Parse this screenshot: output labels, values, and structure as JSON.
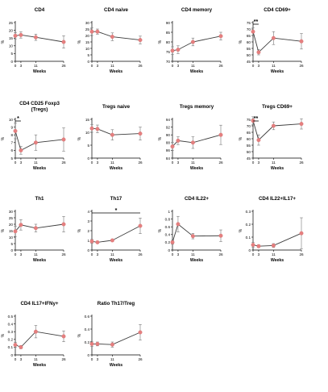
{
  "figure": {
    "xlabel": "Weeks",
    "ylabel": "%",
    "point_color": "#e57f7f",
    "line_color": "#3c3c3c"
  },
  "chart_data": [
    {
      "type": "line",
      "title": "CD4",
      "ylim": [
        0,
        25
      ],
      "yticks": [
        0,
        5,
        10,
        15,
        20,
        25
      ],
      "xticks": [
        0,
        3,
        11,
        26
      ],
      "x": [
        0,
        3,
        11,
        26
      ],
      "y": [
        16.5,
        17,
        15.5,
        12.5
      ],
      "err": [
        2,
        2,
        2,
        4
      ]
    },
    {
      "type": "line",
      "title": "CD4 naive",
      "ylim": [
        0,
        30
      ],
      "yticks": [
        0,
        5,
        10,
        15,
        20,
        25,
        30
      ],
      "xticks": [
        0,
        3,
        11,
        26
      ],
      "x": [
        0,
        3,
        11,
        26
      ],
      "y": [
        23,
        23,
        19,
        16.5
      ],
      "err": [
        3,
        2,
        3,
        3
      ]
    },
    {
      "type": "line",
      "title": "CD4 memory",
      "ylim": [
        70,
        90
      ],
      "yticks": [
        70,
        75,
        80,
        85,
        90
      ],
      "xticks": [
        0,
        3,
        11,
        26
      ],
      "x": [
        0,
        3,
        11,
        26
      ],
      "y": [
        75.5,
        76,
        80,
        83
      ],
      "err": [
        2,
        2,
        2,
        2
      ]
    },
    {
      "type": "line",
      "title": "CD4 CD69+",
      "ylim": [
        45,
        75
      ],
      "yticks": [
        45,
        50,
        55,
        60,
        65,
        70,
        75
      ],
      "xticks": [
        0,
        3,
        11,
        26
      ],
      "x": [
        0,
        3,
        11,
        26
      ],
      "y": [
        68,
        52,
        63,
        60.5
      ],
      "err": [
        3,
        2,
        5,
        6
      ],
      "annotations": [
        {
          "text": "**",
          "x1": 0,
          "x2": 3
        }
      ]
    },
    {
      "type": "line",
      "title": "CD4 CD25 Foxp3",
      "subtitle": "(Tregs)",
      "ylim": [
        5,
        10
      ],
      "yticks": [
        5,
        6,
        7,
        8,
        9,
        10
      ],
      "xticks": [
        0,
        3,
        11,
        26
      ],
      "x": [
        0,
        3,
        11,
        26
      ],
      "y": [
        8.5,
        6,
        7,
        7.4
      ],
      "err": [
        1,
        0.5,
        1,
        1.5
      ],
      "annotations": [
        {
          "text": "*",
          "x1": 0,
          "x2": 3
        }
      ]
    },
    {
      "type": "line",
      "title": "Tregs naive",
      "ylim": [
        0,
        15
      ],
      "yticks": [
        0,
        5,
        10,
        15
      ],
      "xticks": [
        0,
        3,
        11,
        26
      ],
      "x": [
        0,
        3,
        11,
        26
      ],
      "y": [
        11.5,
        11.3,
        9,
        9.5
      ],
      "err": [
        1.5,
        1.5,
        2,
        2.5
      ]
    },
    {
      "type": "line",
      "title": "Tregs memory",
      "ylim": [
        84,
        94
      ],
      "yticks": [
        84,
        86,
        88,
        90,
        92,
        94
      ],
      "xticks": [
        0,
        3,
        11,
        26
      ],
      "x": [
        0,
        3,
        11,
        26
      ],
      "y": [
        87,
        88.5,
        88,
        90
      ],
      "err": [
        1,
        1,
        1.5,
        2.5
      ]
    },
    {
      "type": "line",
      "title": "Tregs CD69+",
      "ylim": [
        45,
        75
      ],
      "yticks": [
        45,
        50,
        55,
        60,
        65,
        70,
        75
      ],
      "xticks": [
        0,
        3,
        11,
        26
      ],
      "x": [
        0,
        3,
        11,
        26
      ],
      "y": [
        74,
        59,
        70,
        71.5
      ],
      "err": [
        3,
        4,
        3,
        4
      ],
      "annotations": [
        {
          "text": "**",
          "x1": 0,
          "x2": 3
        }
      ]
    },
    {
      "type": "line",
      "title": "Th1",
      "ylim": [
        0,
        30
      ],
      "yticks": [
        0,
        5,
        10,
        15,
        20,
        25,
        30
      ],
      "xticks": [
        0,
        3,
        11,
        26
      ],
      "x": [
        0,
        3,
        11,
        26
      ],
      "y": [
        14.5,
        19.5,
        17,
        20
      ],
      "err": [
        4,
        4,
        3,
        6
      ]
    },
    {
      "type": "line",
      "title": "Th17",
      "ylim": [
        0,
        4
      ],
      "yticks": [
        0,
        1,
        2,
        3,
        4
      ],
      "xticks": [
        0,
        3,
        11,
        26
      ],
      "x": [
        0,
        3,
        11,
        26
      ],
      "y": [
        0.9,
        0.8,
        1,
        2.5
      ],
      "err": [
        0.2,
        0.1,
        0.1,
        0.8
      ],
      "annotations": [
        {
          "text": "*",
          "x1": 0,
          "x2": 26
        }
      ]
    },
    {
      "type": "line",
      "title": "CD4 IL22+",
      "ylim": [
        0,
        1
      ],
      "yticks": [
        0,
        0.2,
        0.4,
        0.6,
        0.8,
        1.0
      ],
      "xticks": [
        0,
        3,
        11,
        26
      ],
      "x": [
        0,
        3,
        11,
        26
      ],
      "y": [
        0.2,
        0.67,
        0.36,
        0.37
      ],
      "err": [
        0.05,
        0.2,
        0.07,
        0.15
      ]
    },
    {
      "type": "line",
      "title": "CD4 IL22+IL17+",
      "ylim": [
        0,
        0.3
      ],
      "yticks": [
        0,
        0.1,
        0.2,
        0.3
      ],
      "xticks": [
        0,
        3,
        11,
        26
      ],
      "x": [
        0,
        3,
        11,
        26
      ],
      "y": [
        0.04,
        0.03,
        0.035,
        0.13
      ],
      "err": [
        0.02,
        0.01,
        0.015,
        0.12
      ]
    },
    {
      "type": "line",
      "title": "CD4 IL17+IFNy+",
      "ylim": [
        0,
        0.5
      ],
      "yticks": [
        0,
        0.1,
        0.2,
        0.3,
        0.4,
        0.5
      ],
      "xticks": [
        0,
        3,
        11,
        26
      ],
      "x": [
        0,
        3,
        11,
        26
      ],
      "y": [
        0.13,
        0.1,
        0.3,
        0.24
      ],
      "err": [
        0.03,
        0.02,
        0.08,
        0.07
      ]
    },
    {
      "type": "line",
      "title": "Ratio Th17/Treg",
      "ylim": [
        0,
        0.6
      ],
      "yticks": [
        0,
        0.2,
        0.4,
        0.6
      ],
      "xticks": [
        0,
        3,
        11,
        26
      ],
      "x": [
        0,
        3,
        11,
        26
      ],
      "y": [
        0.17,
        0.17,
        0.16,
        0.35
      ],
      "err": [
        0.04,
        0.03,
        0.04,
        0.12
      ]
    }
  ]
}
